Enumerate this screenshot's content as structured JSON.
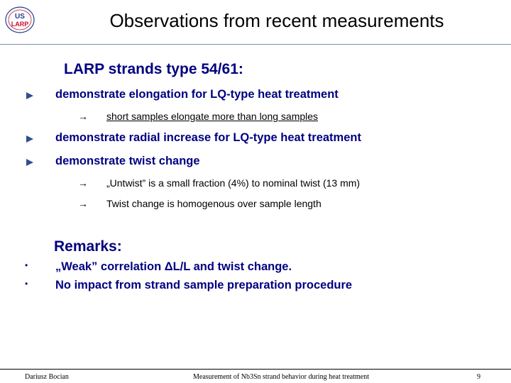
{
  "slide": {
    "title": "Observations from recent measurements",
    "logo_text": [
      "US",
      "LARP"
    ]
  },
  "section1": {
    "heading": "LARP strands type 54/61:",
    "items": [
      {
        "text": "demonstrate elongation for LQ-type heat treatment",
        "sub": [
          "short samples elongate more than long samples"
        ]
      },
      {
        "text": "demonstrate radial increase for LQ-type heat treatment",
        "sub": []
      },
      {
        "text": "demonstrate twist change",
        "sub": [
          "„Untwist” is a small fraction (4%) to nominal twist (13 mm)",
          "Twist change is homogenous over sample length"
        ]
      }
    ],
    "arrow_symbol": "→"
  },
  "remarks": {
    "heading": "Remarks:",
    "bullet_symbol": "•",
    "items": [
      "„Weak” correlation ΔL/L and twist change.",
      "No impact from strand sample preparation procedure"
    ]
  },
  "footer": {
    "author": "Dariusz Bocian",
    "subject": "Measurement of Nb3Sn strand behavior during heat treatment",
    "page_number": "9"
  },
  "colors": {
    "heading": "#000080",
    "bullet_triangle": "#2f4f8f",
    "logo_red": "#c8102e",
    "logo_blue": "#1f3f8f"
  }
}
